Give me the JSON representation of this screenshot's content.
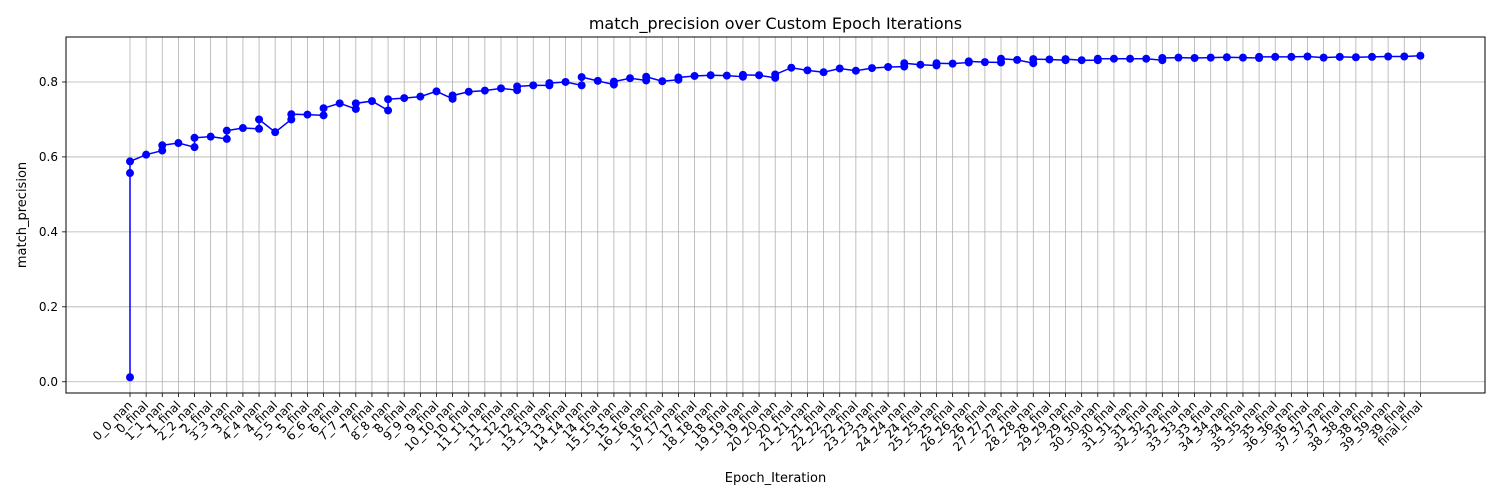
{
  "chart_data": {
    "type": "line",
    "title": "match_precision over Custom Epoch Iterations",
    "xlabel": "Epoch_Iteration",
    "ylabel": "match_precision",
    "ylim": [
      -0.03,
      0.92
    ],
    "yticks": [
      0.0,
      0.2,
      0.4,
      0.6,
      0.8
    ],
    "ytick_labels": [
      "0.0",
      "0.2",
      "0.4",
      "0.6",
      "0.8"
    ],
    "grid": true,
    "legend": "none",
    "color": "#0000ff",
    "categories": [
      "0_0_nan",
      "0_final",
      "1_1_nan",
      "1_final",
      "2_2_nan",
      "2_final",
      "3_3_nan",
      "3_final",
      "4_4_nan",
      "4_final",
      "5_5_nan",
      "5_final",
      "6_6_nan",
      "6_final",
      "7_7_nan",
      "7_final",
      "8_8_nan",
      "8_final",
      "9_9_nan",
      "9_final",
      "10_10_nan",
      "10_final",
      "11_11_nan",
      "11_final",
      "12_12_nan",
      "12_final",
      "13_13_nan",
      "13_final",
      "14_14_nan",
      "14_final",
      "15_15_nan",
      "15_final",
      "16_16_nan",
      "16_final",
      "17_17_nan",
      "17_final",
      "18_18_nan",
      "18_final",
      "19_19_nan",
      "19_final",
      "20_20_nan",
      "20_final",
      "21_21_nan",
      "21_final",
      "22_22_nan",
      "22_final",
      "23_23_nan",
      "23_final",
      "24_24_nan",
      "24_final",
      "25_25_nan",
      "25_final",
      "26_26_nan",
      "26_final",
      "27_27_nan",
      "27_final",
      "28_28_nan",
      "28_final",
      "29_29_nan",
      "29_final",
      "30_30_nan",
      "30_final",
      "31_31_nan",
      "31_final",
      "32_32_nan",
      "32_final",
      "33_33_nan",
      "33_final",
      "34_34_nan",
      "34_final",
      "35_35_nan",
      "35_final",
      "36_36_nan",
      "36_final",
      "37_37_nan",
      "37_final",
      "38_38_nan",
      "38_final",
      "39_39_nan",
      "39_final",
      "final_final"
    ],
    "points": [
      [
        "0_0_nan",
        0.012
      ],
      [
        "0_0_nan",
        0.557
      ],
      [
        "0_0_nan",
        0.588
      ],
      [
        "0_final",
        0.606
      ],
      [
        "1_1_nan",
        0.617
      ],
      [
        "1_1_nan",
        0.631
      ],
      [
        "1_final",
        0.637
      ],
      [
        "2_2_nan",
        0.626
      ],
      [
        "2_2_nan",
        0.651
      ],
      [
        "2_final",
        0.654
      ],
      [
        "3_3_nan",
        0.648
      ],
      [
        "3_3_nan",
        0.67
      ],
      [
        "3_final",
        0.677
      ],
      [
        "4_4_nan",
        0.675
      ],
      [
        "4_4_nan",
        0.7
      ],
      [
        "4_final",
        0.666
      ],
      [
        "5_5_nan",
        0.7
      ],
      [
        "5_5_nan",
        0.714
      ],
      [
        "5_final",
        0.713
      ],
      [
        "6_6_nan",
        0.711
      ],
      [
        "6_6_nan",
        0.73
      ],
      [
        "6_final",
        0.743
      ],
      [
        "7_7_nan",
        0.728
      ],
      [
        "7_7_nan",
        0.743
      ],
      [
        "7_final",
        0.749
      ],
      [
        "8_8_nan",
        0.724
      ],
      [
        "8_8_nan",
        0.754
      ],
      [
        "8_final",
        0.757
      ],
      [
        "9_9_nan",
        0.761
      ],
      [
        "9_final",
        0.775
      ],
      [
        "10_10_nan",
        0.755
      ],
      [
        "10_10_nan",
        0.764
      ],
      [
        "10_final",
        0.774
      ],
      [
        "11_11_nan",
        0.777
      ],
      [
        "11_final",
        0.783
      ],
      [
        "12_12_nan",
        0.778
      ],
      [
        "12_12_nan",
        0.788
      ],
      [
        "12_final",
        0.791
      ],
      [
        "13_13_nan",
        0.791
      ],
      [
        "13_13_nan",
        0.797
      ],
      [
        "13_final",
        0.8
      ],
      [
        "14_14_nan",
        0.791
      ],
      [
        "14_14_nan",
        0.813
      ],
      [
        "14_final",
        0.803
      ],
      [
        "15_15_nan",
        0.793
      ],
      [
        "15_15_nan",
        0.801
      ],
      [
        "15_final",
        0.81
      ],
      [
        "16_16_nan",
        0.804
      ],
      [
        "16_16_nan",
        0.814
      ],
      [
        "16_final",
        0.802
      ],
      [
        "17_17_nan",
        0.806
      ],
      [
        "17_17_nan",
        0.812
      ],
      [
        "17_final",
        0.816
      ],
      [
        "18_18_nan",
        0.818
      ],
      [
        "18_final",
        0.817
      ],
      [
        "19_19_nan",
        0.814
      ],
      [
        "19_19_nan",
        0.819
      ],
      [
        "19_final",
        0.818
      ],
      [
        "20_20_nan",
        0.811
      ],
      [
        "20_20_nan",
        0.82
      ],
      [
        "20_final",
        0.838
      ],
      [
        "21_21_nan",
        0.831
      ],
      [
        "21_final",
        0.826
      ],
      [
        "22_22_nan",
        0.836
      ],
      [
        "22_final",
        0.83
      ],
      [
        "23_23_nan",
        0.837
      ],
      [
        "23_final",
        0.84
      ],
      [
        "24_24_nan",
        0.841
      ],
      [
        "24_24_nan",
        0.85
      ],
      [
        "24_final",
        0.846
      ],
      [
        "25_25_nan",
        0.844
      ],
      [
        "25_25_nan",
        0.85
      ],
      [
        "25_final",
        0.849
      ],
      [
        "26_26_nan",
        0.852
      ],
      [
        "26_26_nan",
        0.855
      ],
      [
        "26_final",
        0.853
      ],
      [
        "27_27_nan",
        0.852
      ],
      [
        "27_27_nan",
        0.862
      ],
      [
        "27_final",
        0.859
      ],
      [
        "28_28_nan",
        0.85
      ],
      [
        "28_28_nan",
        0.861
      ],
      [
        "28_final",
        0.86
      ],
      [
        "29_29_nan",
        0.858
      ],
      [
        "29_29_nan",
        0.861
      ],
      [
        "29_final",
        0.858
      ],
      [
        "30_30_nan",
        0.858
      ],
      [
        "30_30_nan",
        0.862
      ],
      [
        "30_final",
        0.862
      ],
      [
        "31_31_nan",
        0.862
      ],
      [
        "31_final",
        0.862
      ],
      [
        "32_32_nan",
        0.858
      ],
      [
        "32_32_nan",
        0.864
      ],
      [
        "32_final",
        0.865
      ],
      [
        "33_33_nan",
        0.864
      ],
      [
        "33_final",
        0.865
      ],
      [
        "34_34_nan",
        0.866
      ],
      [
        "34_final",
        0.865
      ],
      [
        "35_35_nan",
        0.864
      ],
      [
        "35_35_nan",
        0.867
      ],
      [
        "35_final",
        0.867
      ],
      [
        "36_36_nan",
        0.867
      ],
      [
        "36_final",
        0.868
      ],
      [
        "37_37_nan",
        0.865
      ],
      [
        "37_final",
        0.867
      ],
      [
        "38_38_nan",
        0.866
      ],
      [
        "38_final",
        0.867
      ],
      [
        "39_39_nan",
        0.868
      ],
      [
        "39_final",
        0.868
      ],
      [
        "final_final",
        0.87
      ]
    ]
  }
}
